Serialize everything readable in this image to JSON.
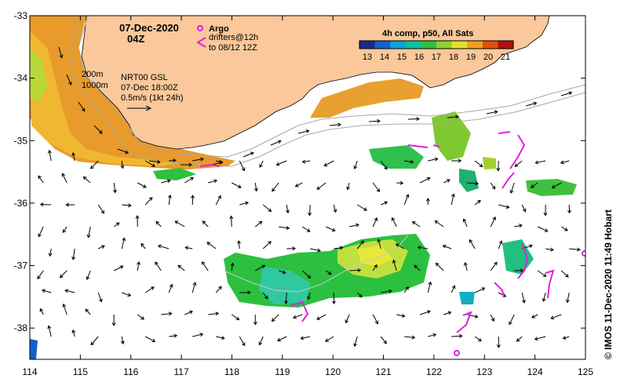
{
  "header": {
    "date": "07-Dec-2020",
    "time": "04Z"
  },
  "legend": {
    "argo_label": "Argo",
    "drifters_label": "drifters@12h",
    "drifters_to": "to 08/12 12Z",
    "argo_color": "#e020e0",
    "drifter_color": "#e020e0"
  },
  "info": {
    "isobath_200": "200m",
    "isobath_1000": "1000m",
    "source": "NRT00 GSL",
    "source_time": "07-Dec 18:00Z",
    "scale": "0.5m/s (1kt 24h)"
  },
  "colorbar": {
    "title": "4h comp, p50, All Sats",
    "ticks": [
      "13",
      "14",
      "15",
      "16",
      "17",
      "18",
      "19",
      "20",
      "21"
    ],
    "colors": [
      "#1a2a8c",
      "#1560c8",
      "#10a0d8",
      "#10c0a0",
      "#30c040",
      "#90d030",
      "#e0e030",
      "#f0a020",
      "#e05010",
      "#b01010"
    ]
  },
  "credit": "© IMOS 11-Dec-2020 11:49 Hobart",
  "map_data": {
    "lon_range": [
      114,
      125
    ],
    "lat_range": [
      -38.5,
      -33
    ],
    "lon_ticks": [
      "114",
      "115",
      "116",
      "117",
      "118",
      "119",
      "120",
      "121",
      "122",
      "123",
      "124",
      "125"
    ],
    "lat_ticks": [
      "-33",
      "-34",
      "-35",
      "-36",
      "-37",
      "-38"
    ],
    "land_color": "#fac89a"
  }
}
